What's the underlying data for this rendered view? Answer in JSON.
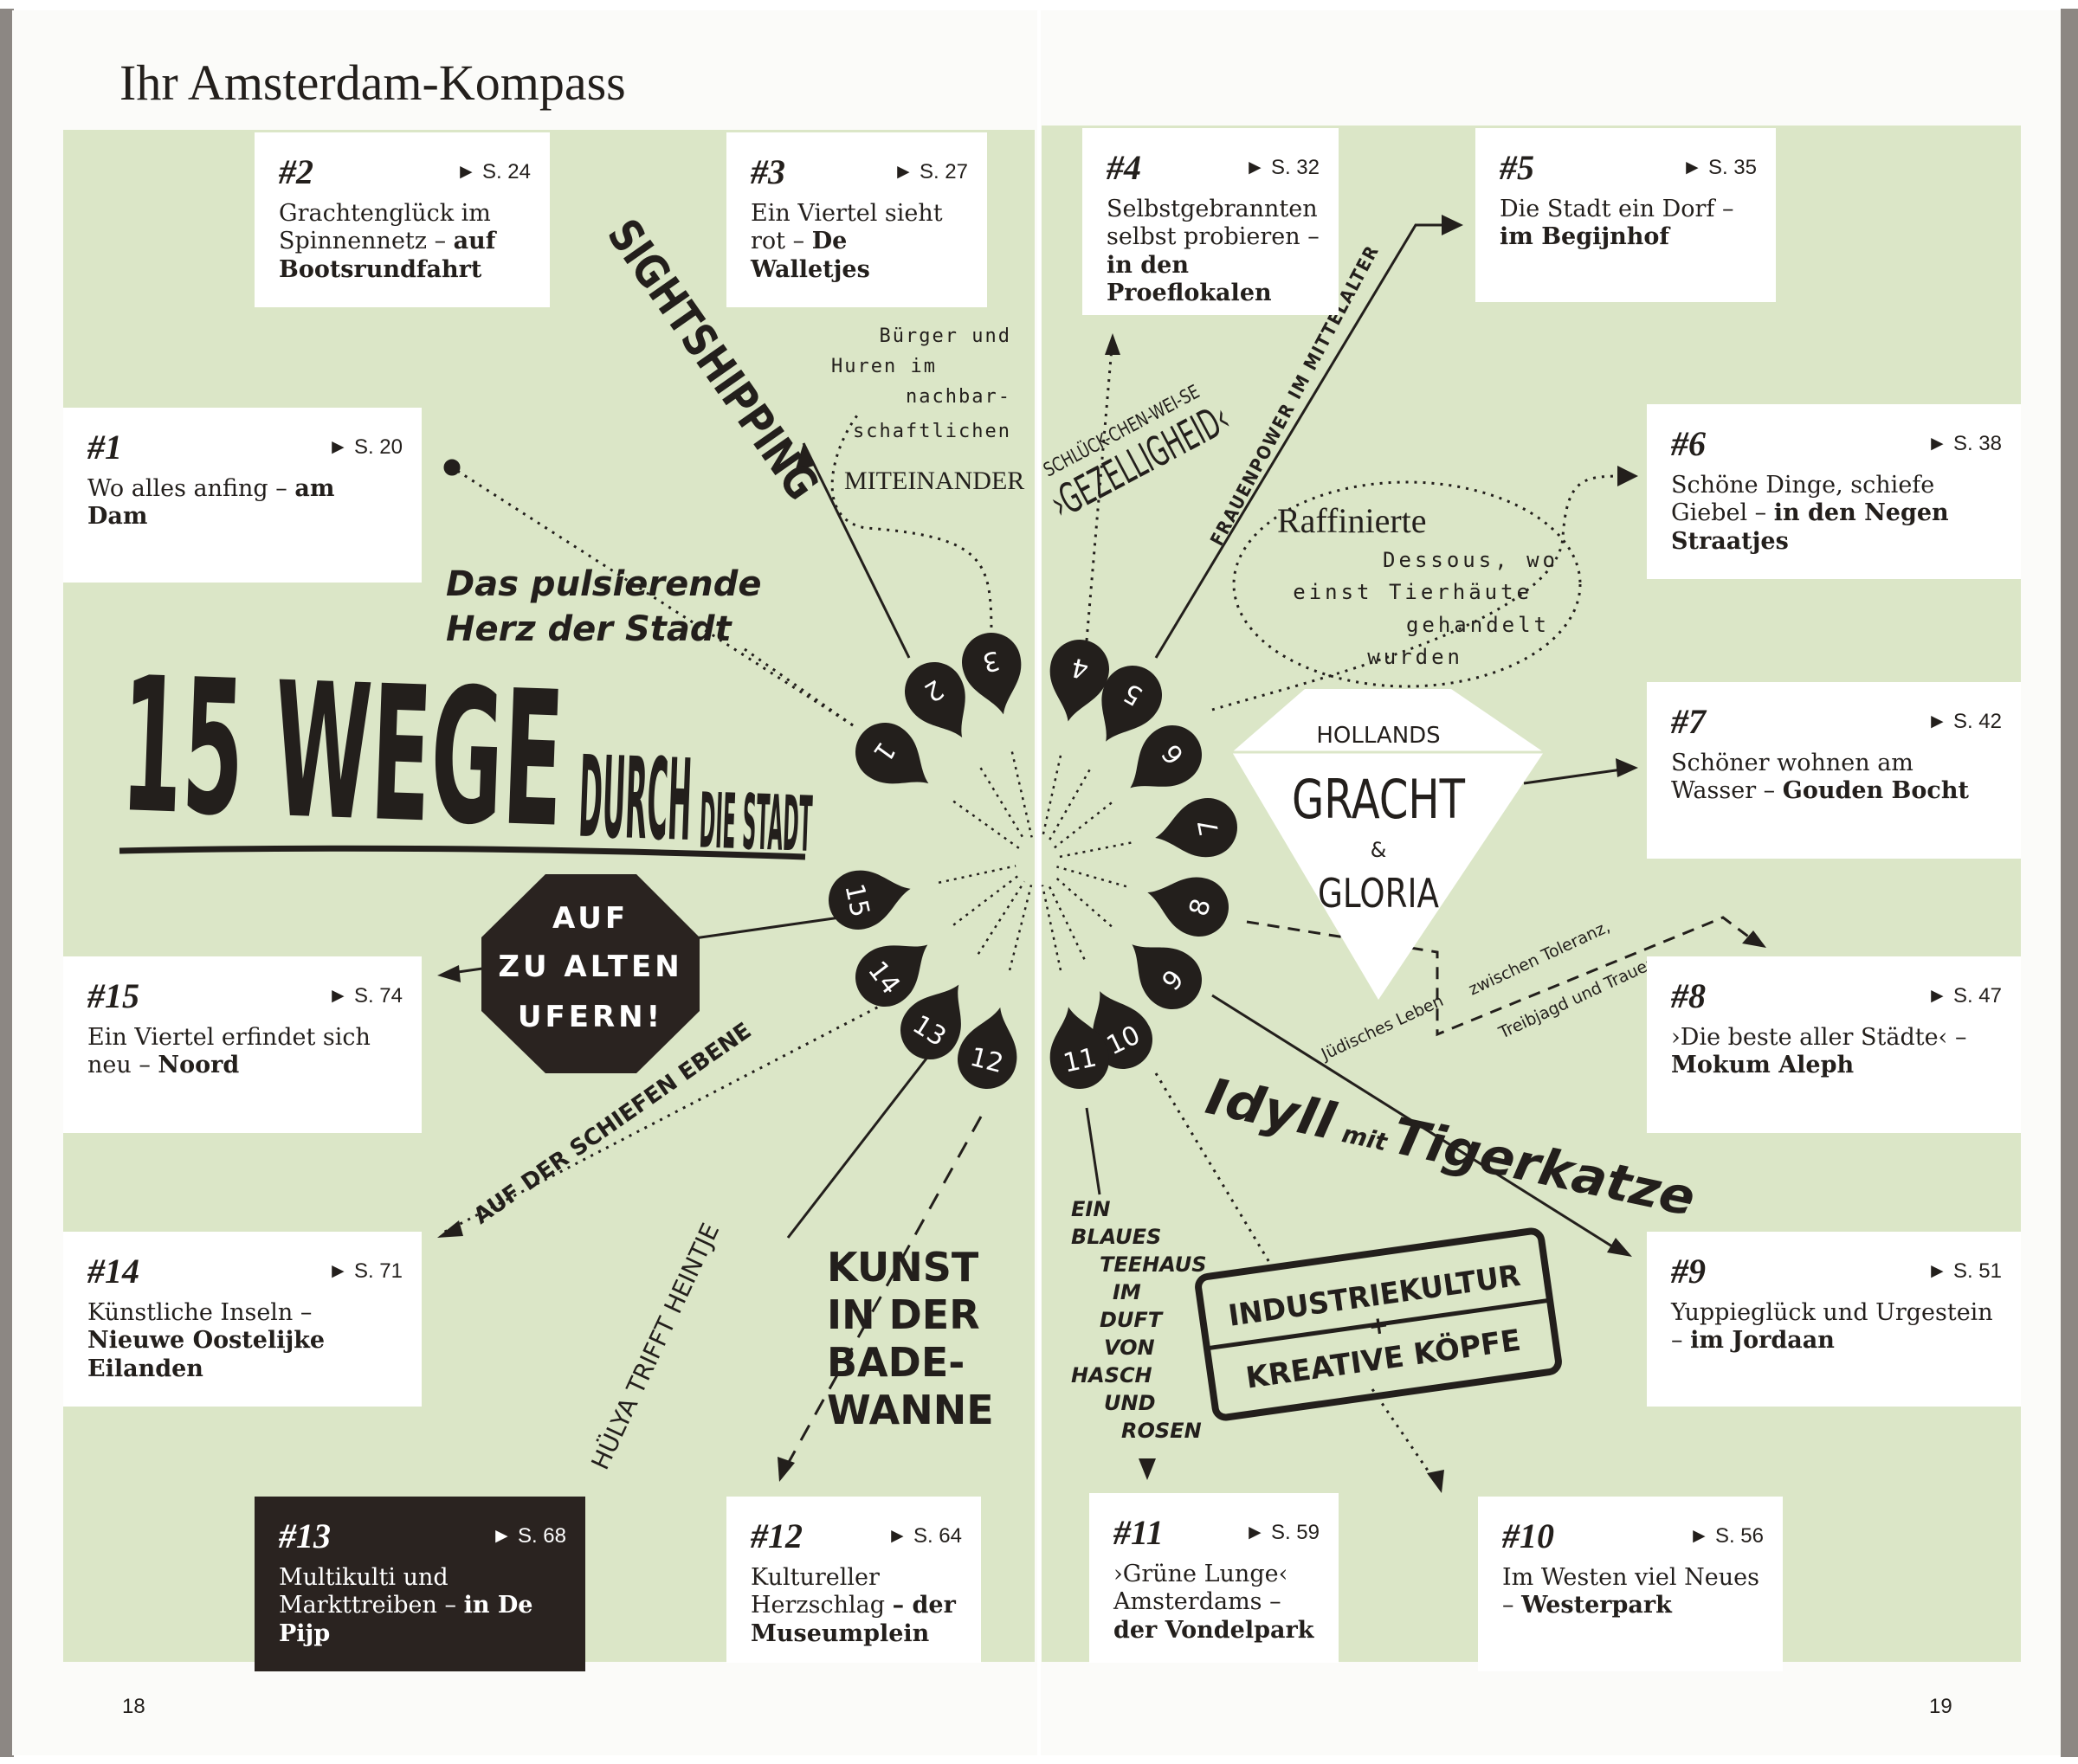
{
  "header": {
    "title": "Ihr Amsterdam-Kompass"
  },
  "page_numbers": {
    "left": "18",
    "right": "19"
  },
  "colors": {
    "green": "#dbe6c7",
    "ink": "#231f1c",
    "box": "#ffffff",
    "dark_box": "#2a2320"
  },
  "routes": [
    {
      "num": "#1",
      "page": "► S. 20",
      "text": "Wo alles anfing – ",
      "bold": "am Dam"
    },
    {
      "num": "#2",
      "page": "► S. 24",
      "text": "Grachtenglück im Spinnennetz – ",
      "bold": "auf Bootsrundfahrt"
    },
    {
      "num": "#3",
      "page": "► S. 27",
      "text": "Ein Viertel sieht rot – ",
      "bold": "De Walletjes"
    },
    {
      "num": "#4",
      "page": "► S. 32",
      "text": "Selbstgebrannten selbst probieren – ",
      "bold": "in den Proeflokalen"
    },
    {
      "num": "#5",
      "page": "► S. 35",
      "text": "Die Stadt ein Dorf – ",
      "bold": "im Begijnhof"
    },
    {
      "num": "#6",
      "page": "► S. 38",
      "text": "Schöne Dinge, schiefe Giebel – ",
      "bold": "in den Negen Straatjes"
    },
    {
      "num": "#7",
      "page": "► S. 42",
      "text": "Schöner wohnen am Wasser – ",
      "bold": "Gouden Bocht"
    },
    {
      "num": "#8",
      "page": "► S. 47",
      "text": "›Die beste aller Städte‹ – ",
      "bold": "Mokum Aleph"
    },
    {
      "num": "#9",
      "page": "► S. 51",
      "text": "Yuppieglück und Urgestein – ",
      "bold": "im Jordaan"
    },
    {
      "num": "#10",
      "page": "► S. 56",
      "text": "Im Westen viel Neues – ",
      "bold": "Westerpark"
    },
    {
      "num": "#11",
      "page": "► S. 59",
      "text": "›Grüne Lunge‹ Amsterdams – ",
      "bold": "der Vondelpark"
    },
    {
      "num": "#12",
      "page": "► S. 64",
      "text": "Kultureller Herzschlag ",
      "bold": "– der Museumplein"
    },
    {
      "num": "#13",
      "page": "► S. 68",
      "text": "Multikulti und Markttreiben – ",
      "bold": "in De Pijp"
    },
    {
      "num": "#14",
      "page": "► S. 71",
      "text": "Künstliche Inseln – ",
      "bold": "Nieuwe Oostelijke Eilanden"
    },
    {
      "num": "#15",
      "page": "► S. 74",
      "text": "Ein Viertel erfindet sich neu – ",
      "bold": "Noord"
    }
  ],
  "drops": [
    "1",
    "2",
    "3",
    "4",
    "5",
    "6",
    "7",
    "8",
    "9",
    "10",
    "11",
    "12",
    "13",
    "14",
    "15"
  ],
  "headline": {
    "a": "15 WEGE",
    "b": "DURCH",
    "c": "DIE STADT"
  },
  "annotations": {
    "sightshipping": "SIGHTSHIPPING",
    "buerger": [
      "Bürger und",
      "Huren im",
      "nachbar-",
      "schaftlichen"
    ],
    "miteinander": "MITEINANDER",
    "herz": [
      "Das pulsierende",
      "Herz der Stadt"
    ],
    "ufer": [
      "AUF",
      "ZU ALTEN",
      "UFERN!"
    ],
    "ebene": "AUF DER SCHIEFEN EBENE",
    "huelya": "HÜLYA TRIFFT HEINTJE",
    "kunst": [
      "KUNST",
      "IN DER",
      "BADE-",
      "WANNE"
    ],
    "schlueck": "SCHLÜCK-CHEN-WEI-SE",
    "gezelligheid": "›GEZELLIGHEID‹",
    "frauenpower": "FRAUENPOWER IM MITTELALTER",
    "raffinierte": [
      "Raffinierte",
      "Dessous, wo",
      "einst Tierhäute",
      "gehandelt",
      "wurden"
    ],
    "gracht": {
      "a": "HOLLANDS",
      "b": "GRACHT",
      "c": "&",
      "d": "GLORIA"
    },
    "juedisch": [
      "Jüdisches Leben",
      "zwischen Toleranz,",
      "Treibjagd und Trauer"
    ],
    "idyll": {
      "a": "Idyll",
      "b": "mit",
      "c": "Tigerkatze"
    },
    "teehaus": [
      "EIN",
      "BLAUES",
      "TEEHAUS",
      "IM",
      "DUFT",
      "VON",
      "HASCH",
      "UND",
      "ROSEN"
    ],
    "stamp": {
      "a": "INDUSTRIEKULTUR",
      "b": "+",
      "c": "KREATIVE KÖPFE"
    }
  }
}
